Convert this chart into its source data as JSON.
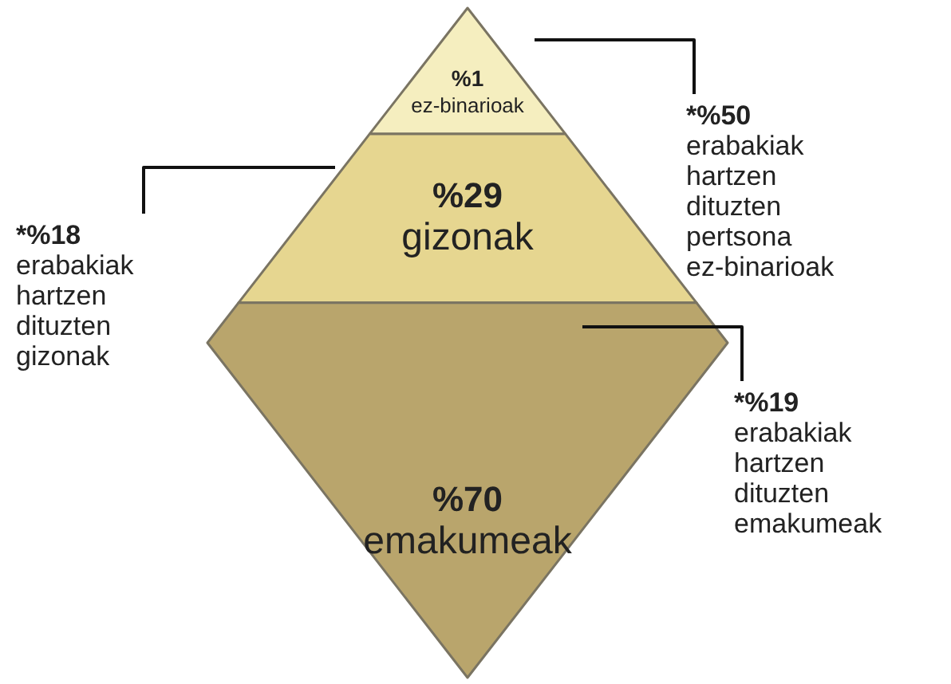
{
  "chart_data": {
    "type": "other",
    "categories": [
      "ez-binarioak",
      "gizonak",
      "emakumeak"
    ],
    "values": [
      1,
      29,
      70
    ],
    "value_labels": [
      "%1",
      "%29",
      "%70"
    ],
    "colors": [
      "#f5eebf",
      "#e6d690",
      "#b9a56c"
    ],
    "annotations": [
      "*%50 erabakiak hartzen dituzten pertsona ez-binarioak",
      "*%18 erabakiak hartzen dituzten gizonak",
      "*%19 erabakiak hartzen dituzten emakumeak"
    ]
  }
}
